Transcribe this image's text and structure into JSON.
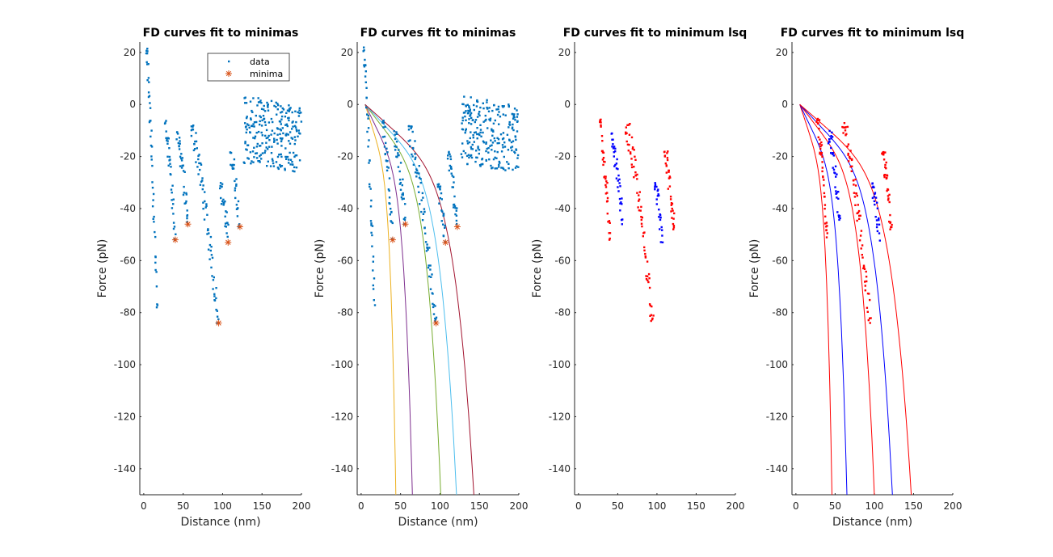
{
  "chart_data": [
    {
      "type": "scatter",
      "title": "FD curves fit to minimas",
      "xlabel": "Distance (nm)",
      "ylabel": "Force (pN)",
      "xlim": [
        -5,
        200
      ],
      "ylim": [
        -150,
        24
      ],
      "xticks": [
        0,
        50,
        100,
        150,
        200
      ],
      "yticks": [
        20,
        0,
        -20,
        -40,
        -60,
        -80,
        -100,
        -120,
        -140
      ],
      "legend": {
        "position": "top-right",
        "entries": [
          {
            "label": "data",
            "color": "#0072BD",
            "marker": "dot"
          },
          {
            "label": "minima",
            "color": "#D95319",
            "marker": "asterisk"
          }
        ]
      },
      "data_color": "#0072BD",
      "minima_color": "#D95319",
      "data_segments": [
        {
          "x_range": [
            3,
            17
          ],
          "f_range": [
            22,
            -78
          ],
          "n": 45
        },
        {
          "x_range": [
            27,
            40
          ],
          "f_range": [
            -6,
            -52
          ],
          "n": 35
        },
        {
          "x_range": [
            42,
            56
          ],
          "f_range": [
            -10,
            -46
          ],
          "n": 35
        },
        {
          "x_range": [
            60,
            95
          ],
          "f_range": [
            -8,
            -84
          ],
          "n": 70
        },
        {
          "x_range": [
            97,
            107
          ],
          "f_range": [
            -30,
            -53
          ],
          "n": 25
        },
        {
          "x_range": [
            110,
            122
          ],
          "f_range": [
            -18,
            -47
          ],
          "n": 30
        },
        {
          "x_range": [
            127,
            200
          ],
          "f_range": [
            7,
            -22
          ],
          "n": 240,
          "plateau": true
        }
      ],
      "minima": [
        {
          "x": 40,
          "y": -52
        },
        {
          "x": 56,
          "y": -46
        },
        {
          "x": 95,
          "y": -84
        },
        {
          "x": 107,
          "y": -53
        },
        {
          "x": 122,
          "y": -47
        }
      ]
    },
    {
      "type": "scatter",
      "title": "FD curves fit to minimas",
      "xlabel": "Distance (nm)",
      "ylabel": "Force (pN)",
      "xlim": [
        -5,
        200
      ],
      "ylim": [
        -150,
        24
      ],
      "xticks": [
        0,
        50,
        100,
        150,
        200
      ],
      "yticks": [
        20,
        0,
        -20,
        -40,
        -60,
        -80,
        -100,
        -120,
        -140
      ],
      "data_color": "#0072BD",
      "minima_color": "#D95319",
      "data_segments": [
        {
          "x_range": [
            3,
            17
          ],
          "f_range": [
            22,
            -78
          ],
          "n": 45
        },
        {
          "x_range": [
            27,
            40
          ],
          "f_range": [
            -6,
            -52
          ],
          "n": 35
        },
        {
          "x_range": [
            42,
            56
          ],
          "f_range": [
            -10,
            -46
          ],
          "n": 35
        },
        {
          "x_range": [
            60,
            95
          ],
          "f_range": [
            -8,
            -84
          ],
          "n": 70
        },
        {
          "x_range": [
            97,
            107
          ],
          "f_range": [
            -30,
            -53
          ],
          "n": 25
        },
        {
          "x_range": [
            110,
            122
          ],
          "f_range": [
            -18,
            -47
          ],
          "n": 30
        },
        {
          "x_range": [
            127,
            200
          ],
          "f_range": [
            7,
            -22
          ],
          "n": 240,
          "plateau": true
        }
      ],
      "minima": [
        {
          "x": 40,
          "y": -52
        },
        {
          "x": 56,
          "y": -46
        },
        {
          "x": 95,
          "y": -84
        },
        {
          "x": 107,
          "y": -53
        },
        {
          "x": 122,
          "y": -47
        }
      ],
      "fit_curves": [
        {
          "color": "#EDB120",
          "x_start": 5,
          "x_end": 44,
          "y_end": -150
        },
        {
          "color": "#7E2F8E",
          "x_start": 5,
          "x_end": 65,
          "y_end": -150
        },
        {
          "color": "#77AC30",
          "x_start": 5,
          "x_end": 101,
          "y_end": -150
        },
        {
          "color": "#4DBEEE",
          "x_start": 5,
          "x_end": 121,
          "y_end": -150
        },
        {
          "color": "#A2142F",
          "x_start": 5,
          "x_end": 143,
          "y_end": -150
        }
      ]
    },
    {
      "type": "scatter",
      "title": "FD curves fit to minimum lsq",
      "xlabel": "",
      "ylabel": "Force (pN)",
      "xlim": [
        -5,
        200
      ],
      "ylim": [
        -150,
        24
      ],
      "xticks": [
        0,
        50,
        100,
        150,
        200
      ],
      "yticks": [
        20,
        0,
        -20,
        -40,
        -60,
        -80,
        -100,
        -120,
        -140
      ],
      "data_segments": [
        {
          "color": "#FF0000",
          "x_range": [
            27,
            40
          ],
          "f_range": [
            -5,
            -52
          ],
          "n": 40
        },
        {
          "color": "#0000FF",
          "x_range": [
            42,
            56
          ],
          "f_range": [
            -10,
            -46
          ],
          "n": 35
        },
        {
          "color": "#FF0000",
          "x_range": [
            60,
            95
          ],
          "f_range": [
            -7,
            -84
          ],
          "n": 70
        },
        {
          "color": "#0000FF",
          "x_range": [
            97,
            107
          ],
          "f_range": [
            -30,
            -53
          ],
          "n": 25
        },
        {
          "color": "#FF0000",
          "x_range": [
            110,
            122
          ],
          "f_range": [
            -18,
            -48
          ],
          "n": 35
        }
      ]
    },
    {
      "type": "scatter",
      "title": "FD curves fit to minimum lsq",
      "xlabel": "Distance (nm)",
      "ylabel": "Force (pN)",
      "xlim": [
        -5,
        200
      ],
      "ylim": [
        -150,
        24
      ],
      "xticks": [
        0,
        50,
        100,
        150,
        200
      ],
      "yticks": [
        20,
        0,
        -20,
        -40,
        -60,
        -80,
        -100,
        -120,
        -140
      ],
      "data_segments": [
        {
          "color": "#FF0000",
          "x_range": [
            27,
            40
          ],
          "f_range": [
            -5,
            -52
          ],
          "n": 40
        },
        {
          "color": "#0000FF",
          "x_range": [
            42,
            56
          ],
          "f_range": [
            -10,
            -46
          ],
          "n": 35
        },
        {
          "color": "#FF0000",
          "x_range": [
            60,
            95
          ],
          "f_range": [
            -7,
            -84
          ],
          "n": 70
        },
        {
          "color": "#0000FF",
          "x_range": [
            97,
            107
          ],
          "f_range": [
            -30,
            -53
          ],
          "n": 25
        },
        {
          "color": "#FF0000",
          "x_range": [
            110,
            122
          ],
          "f_range": [
            -18,
            -48
          ],
          "n": 35
        }
      ],
      "fit_curves": [
        {
          "color": "#FF0000",
          "x_start": 5,
          "x_end": 46,
          "y_end": -150
        },
        {
          "color": "#0000FF",
          "x_start": 5,
          "x_end": 65,
          "y_end": -150
        },
        {
          "color": "#FF0000",
          "x_start": 5,
          "x_end": 100,
          "y_end": -150
        },
        {
          "color": "#0000FF",
          "x_start": 5,
          "x_end": 123,
          "y_end": -150
        },
        {
          "color": "#FF0000",
          "x_start": 5,
          "x_end": 147,
          "y_end": -150
        }
      ]
    }
  ]
}
